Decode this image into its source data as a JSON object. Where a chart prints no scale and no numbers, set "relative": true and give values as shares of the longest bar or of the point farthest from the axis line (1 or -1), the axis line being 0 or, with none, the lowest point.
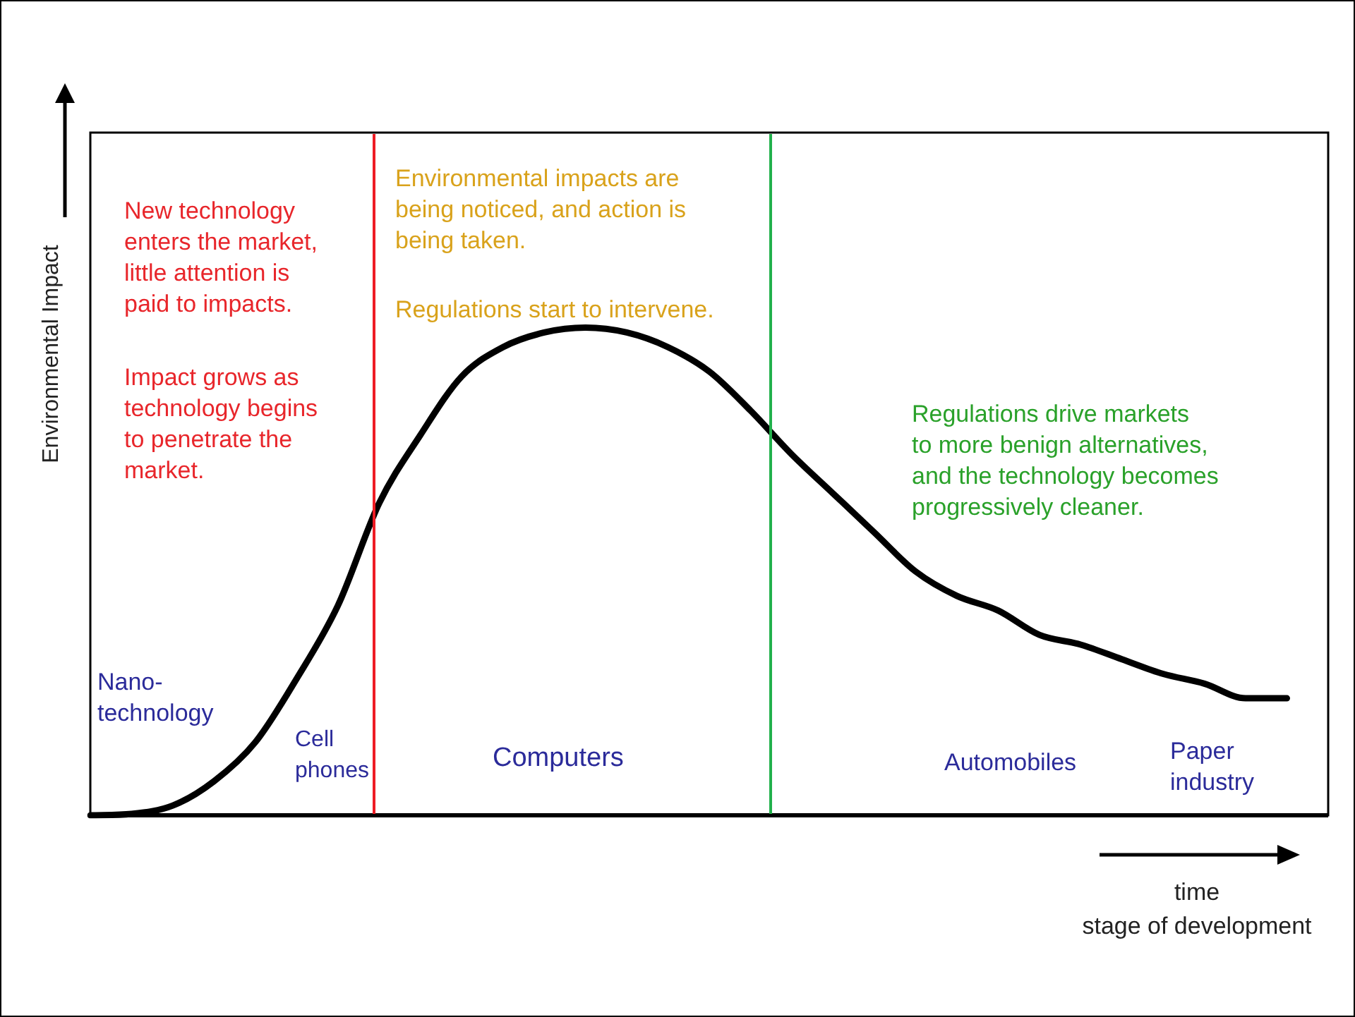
{
  "chart_data": {
    "type": "line",
    "relative": true,
    "xlabel": "time\nstage of development",
    "ylabel": "Environmental Impact",
    "categories": [
      null,
      null,
      null,
      null,
      null,
      null,
      null,
      null,
      null,
      null,
      null,
      null,
      null,
      null,
      null,
      null,
      null,
      null,
      null,
      null,
      null,
      null,
      null,
      null,
      null,
      null,
      null,
      null,
      null,
      null,
      null
    ],
    "series": [
      {
        "color": "#000000",
        "values": [
          0,
          0.003,
          0.02,
          0.07,
          0.15,
          0.28,
          0.43,
          0.64,
          0.78,
          0.9,
          0.96,
          0.99,
          1,
          0.99,
          0.96,
          0.91,
          0.83,
          0.74,
          0.66,
          0.58,
          0.5,
          0.45,
          0.42,
          0.37,
          0.35,
          0.32,
          0.29,
          0.27,
          0.24,
          0.24,
          null
        ]
      }
    ],
    "annotations": [
      "New technology\nenters the market,\nlittle attention is\npaid to impacts.",
      "Impact grows as\ntechnology begins\nto penetrate the\nmarket.",
      "Environmental impacts are\nbeing noticed, and action is\nbeing taken.",
      "Regulations start to intervene.",
      "Regulations drive markets\nto more benign alternatives,\nand the technology becomes\nprogressively cleaner.",
      "Nano-\ntechnology",
      "Cell\nphones",
      "Computers",
      "Automobiles",
      "Paper\nindustry"
    ],
    "tick_labels": false,
    "legend": false,
    "marker": "none",
    "line_style": "solid"
  }
}
